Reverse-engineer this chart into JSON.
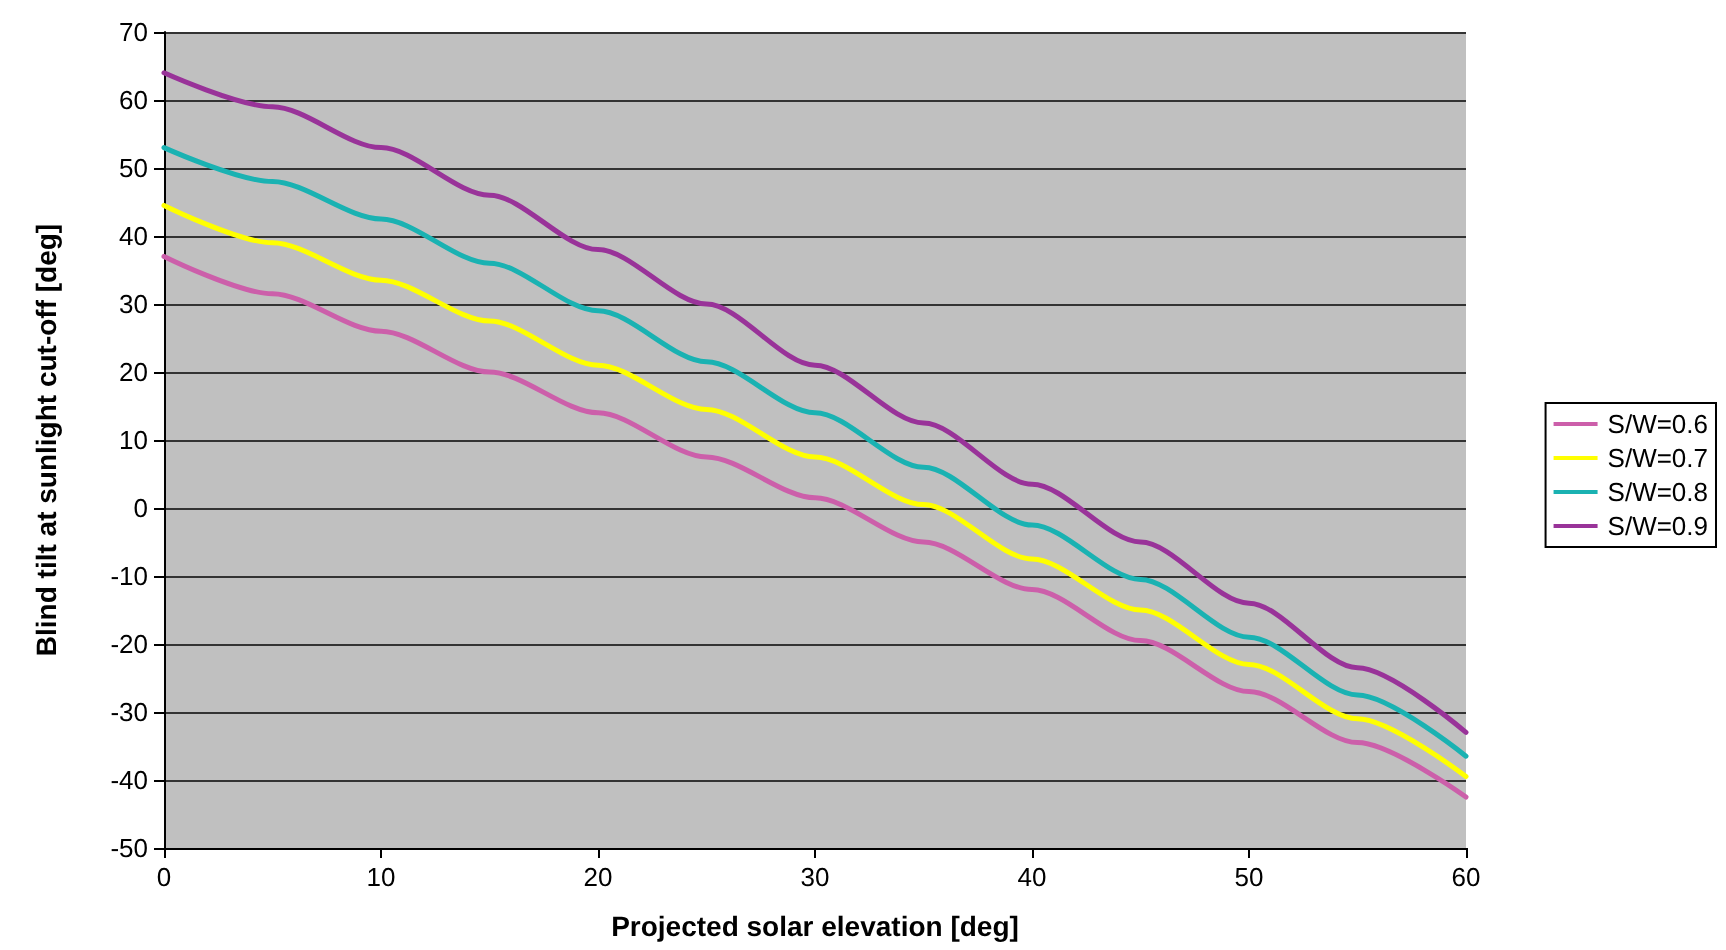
{
  "chart_data": {
    "type": "line",
    "xlabel": "Projected solar elevation [deg]",
    "ylabel": "Blind tilt at sunlight cut-off [deg]",
    "x": [
      0,
      5,
      10,
      15,
      20,
      25,
      30,
      35,
      40,
      45,
      50,
      55,
      60
    ],
    "series": [
      {
        "name": "S/W=0.6",
        "color": "#cc5faa",
        "values": [
          37,
          31.5,
          26,
          20,
          14,
          7.5,
          1.5,
          -5,
          -12,
          -19.5,
          -27,
          -34.5,
          -42.5
        ]
      },
      {
        "name": "S/W=0.7",
        "color": "#ffff00",
        "values": [
          44.5,
          39,
          33.5,
          27.5,
          21,
          14.5,
          7.5,
          0.5,
          -7.5,
          -15,
          -23,
          -31,
          -39.5
        ]
      },
      {
        "name": "S/W=0.8",
        "color": "#1ab2b2",
        "values": [
          53,
          48,
          42.5,
          36,
          29,
          21.5,
          14,
          6,
          -2.5,
          -10.5,
          -19,
          -27.5,
          -36.5
        ]
      },
      {
        "name": "S/W=0.9",
        "color": "#993399",
        "values": [
          64,
          59,
          53,
          46,
          38,
          30,
          21,
          12.5,
          3.5,
          -5,
          -14,
          -23.5,
          -33
        ]
      }
    ],
    "xlim": [
      0,
      60
    ],
    "xticks": [
      0,
      10,
      20,
      30,
      40,
      50,
      60
    ],
    "ylim": [
      -50,
      70
    ],
    "yticks": [
      -50,
      -40,
      -30,
      -20,
      -10,
      0,
      10,
      20,
      30,
      40,
      50,
      60,
      70
    ],
    "grid": "y",
    "legend": "right",
    "marker": "none",
    "line_style": "solid"
  }
}
